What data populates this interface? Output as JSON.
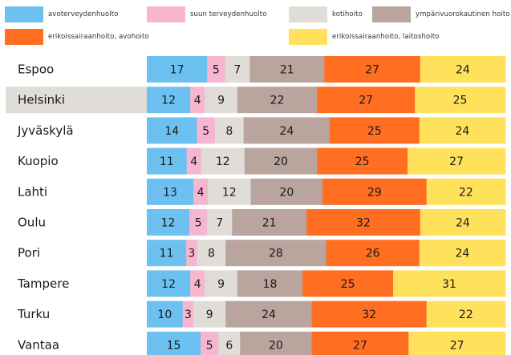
{
  "legend": {
    "items": [
      {
        "label": "avoterveydenhuolto",
        "color": "#6cc1f0"
      },
      {
        "label": "suun terveydenhuolto",
        "color": "#f7b6cf"
      },
      {
        "label": "kotihoito",
        "color": "#e0dcd8"
      },
      {
        "label": "ympärivuorokautinen hoito",
        "color": "#b9a59d"
      },
      {
        "label": "erikoissairaanhoito, avohoito",
        "color": "#ff6e21"
      },
      {
        "label": "erikoissairaanhoito, laitoshoito",
        "color": "#ffe15c"
      }
    ]
  },
  "chart_data": {
    "type": "bar",
    "orientation": "horizontal",
    "stacked": true,
    "categories": [
      "Espoo",
      "Helsinki",
      "Jyväskylä",
      "Kuopio",
      "Lahti",
      "Oulu",
      "Pori",
      "Tampere",
      "Turku",
      "Vantaa"
    ],
    "highlighted_category": "Helsinki",
    "series": [
      {
        "name": "avoterveydenhuolto",
        "values": [
          17,
          12,
          14,
          11,
          13,
          12,
          11,
          12,
          10,
          15
        ]
      },
      {
        "name": "suun terveydenhuolto",
        "values": [
          5,
          4,
          5,
          4,
          4,
          5,
          3,
          4,
          3,
          5
        ]
      },
      {
        "name": "kotihoito",
        "values": [
          7,
          9,
          8,
          12,
          12,
          7,
          8,
          9,
          9,
          6
        ]
      },
      {
        "name": "ympärivuorokautinen hoito",
        "values": [
          21,
          22,
          24,
          20,
          20,
          21,
          28,
          18,
          24,
          20
        ]
      },
      {
        "name": "erikoissairaanhoito, avohoito",
        "values": [
          27,
          27,
          25,
          25,
          29,
          32,
          26,
          25,
          32,
          27
        ]
      },
      {
        "name": "erikoissairaanhoito, laitoshoito",
        "values": [
          24,
          25,
          24,
          27,
          22,
          24,
          24,
          31,
          22,
          27
        ]
      }
    ],
    "legend_position": "top",
    "grid": false
  }
}
